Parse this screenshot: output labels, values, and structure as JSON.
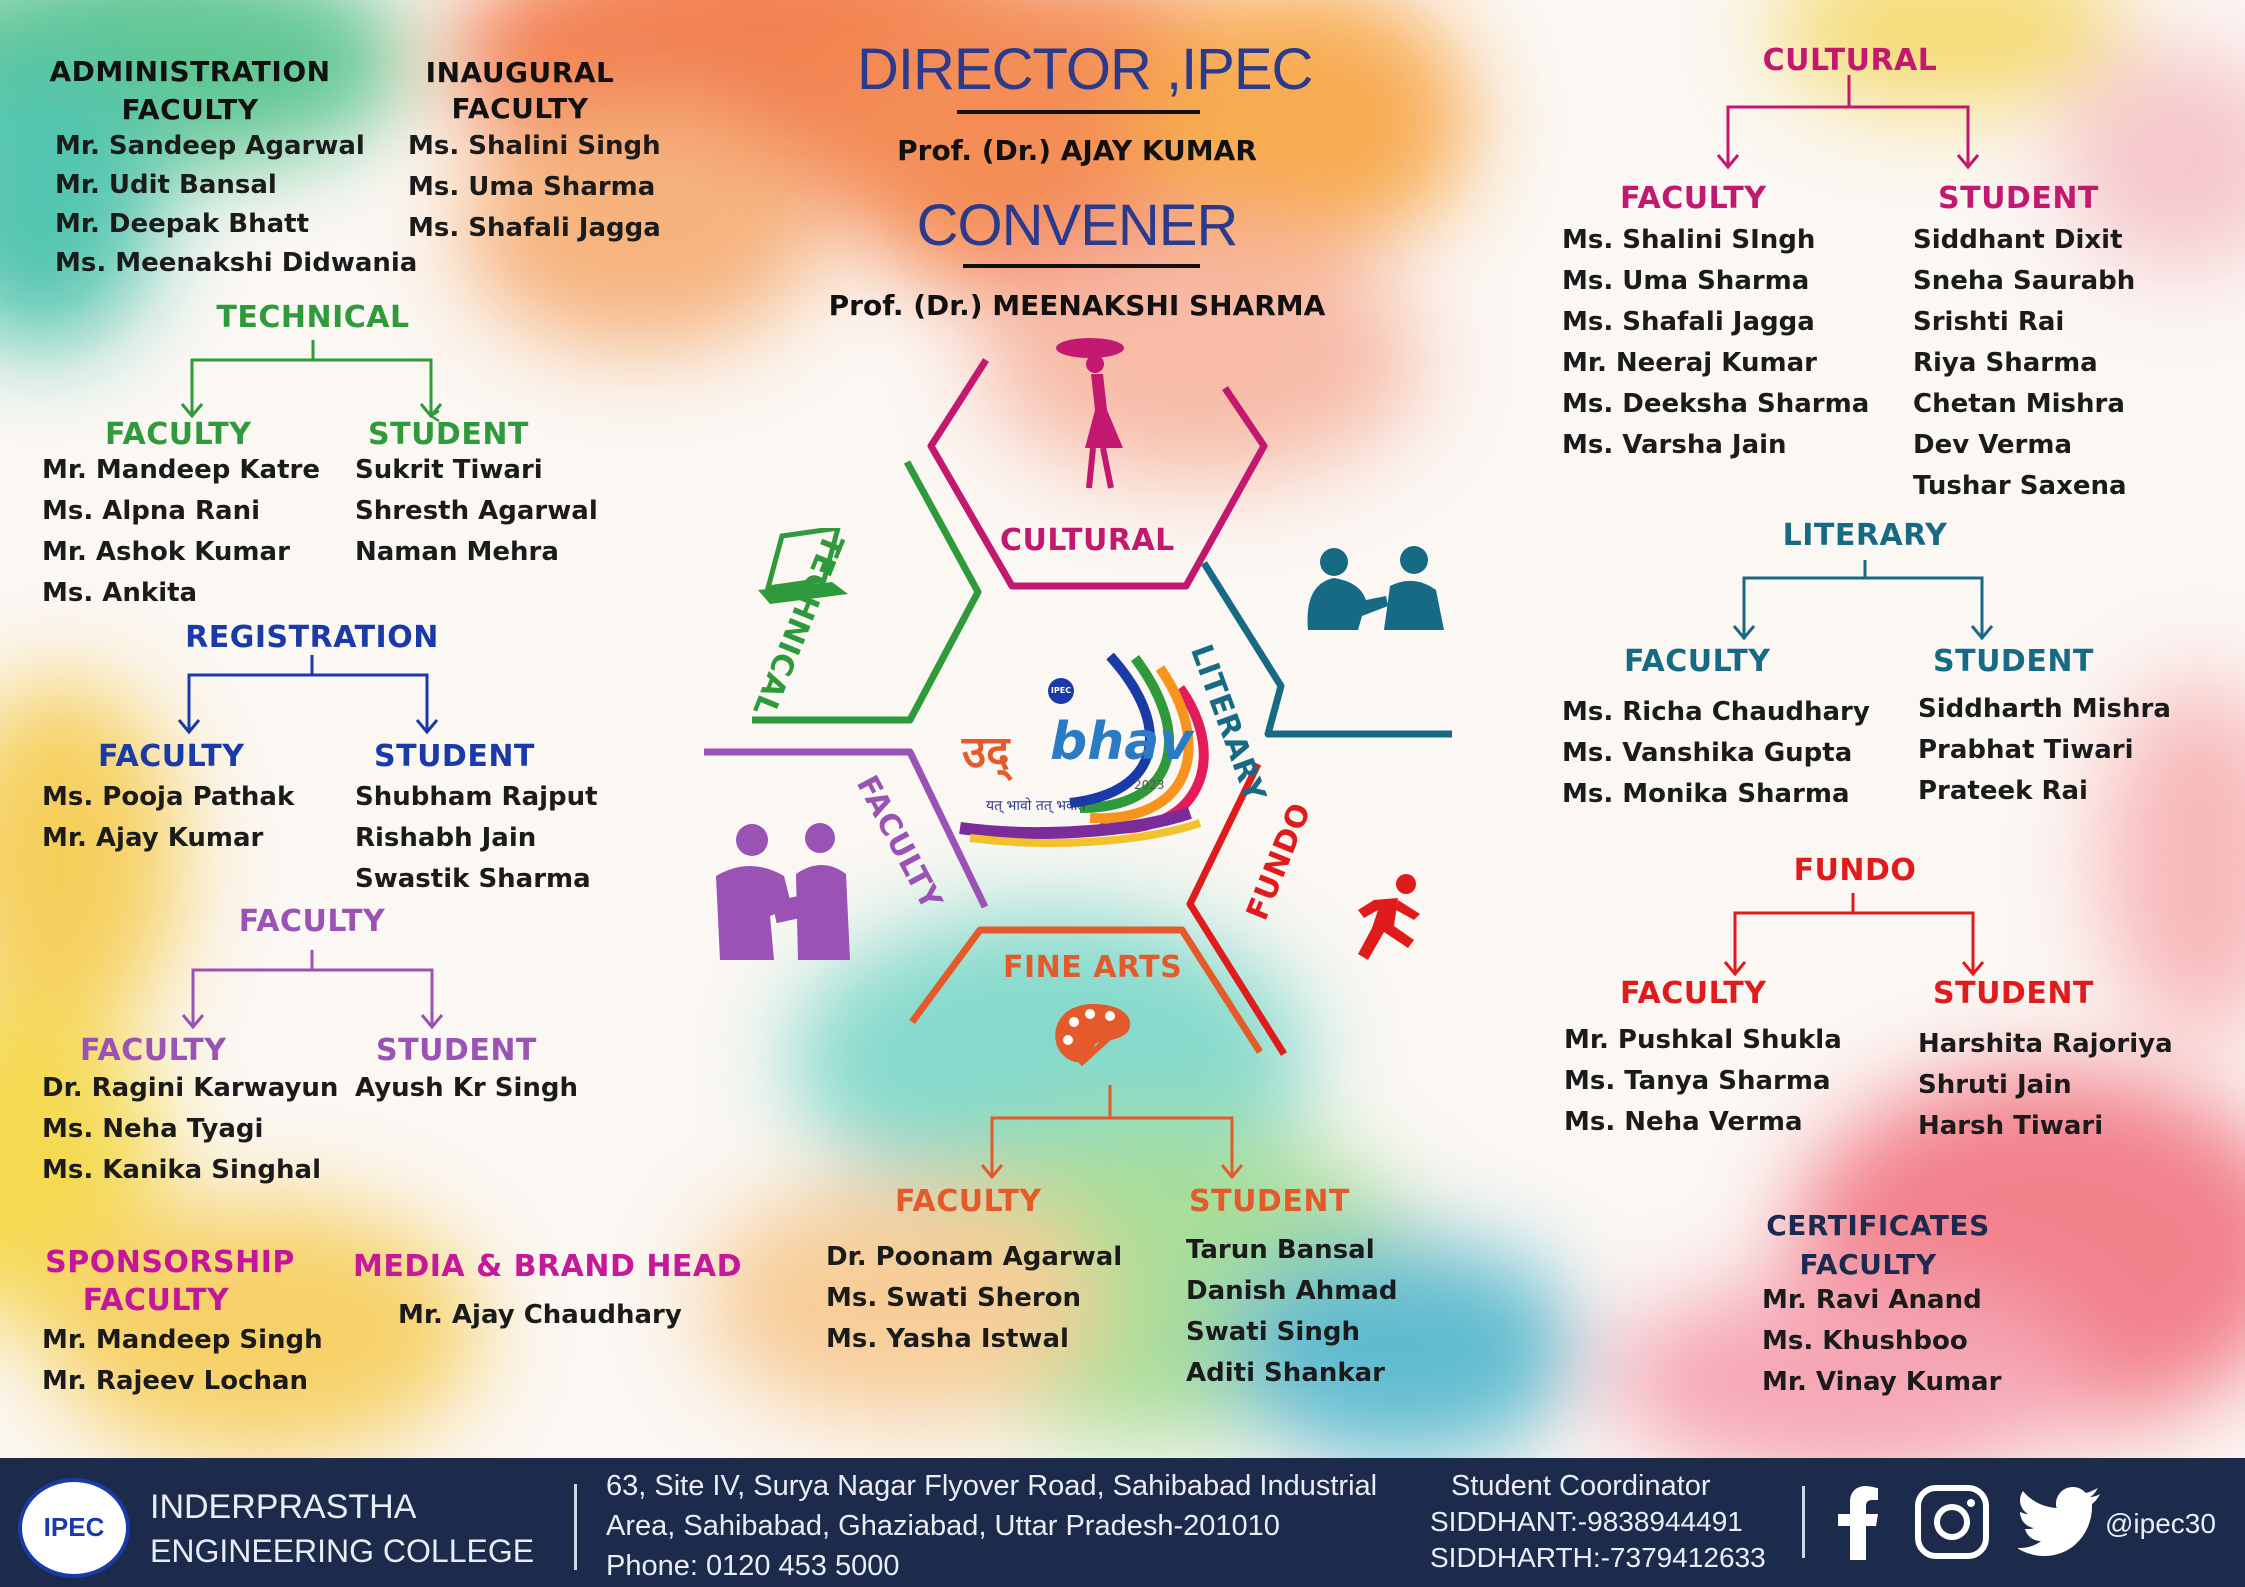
{
  "header": {
    "director_title": "DIRECTOR ,IPEC",
    "director_name": "Prof. (Dr.) AJAY KUMAR",
    "convener_title": "CONVENER",
    "convener_name": "Prof. (Dr.) MEENAKSHI SHARMA"
  },
  "administration": {
    "title": "ADMINISTRATION",
    "subtitle": "FACULTY",
    "names": [
      "Mr. Sandeep Agarwal",
      "Mr. Udit Bansal",
      "Mr. Deepak Bhatt",
      "Ms. Meenakshi Didwania"
    ]
  },
  "inaugural": {
    "title": "INAUGURAL",
    "subtitle": "FACULTY",
    "names": [
      "Ms. Shalini Singh",
      "Ms. Uma Sharma",
      "Ms. Shafali Jagga"
    ]
  },
  "technical": {
    "title": "TECHNICAL",
    "faculty_label": "FACULTY",
    "student_label": "STUDENT",
    "faculty": [
      "Mr. Mandeep Katre",
      "Ms. Alpna Rani",
      "Mr. Ashok Kumar",
      "Ms. Ankita"
    ],
    "students": [
      "Sukrit Tiwari",
      "Shresth Agarwal",
      "Naman Mehra"
    ]
  },
  "registration": {
    "title": "REGISTRATION",
    "faculty_label": "FACULTY",
    "student_label": "STUDENT",
    "faculty": [
      "Ms. Pooja Pathak",
      "Mr. Ajay Kumar"
    ],
    "students": [
      "Shubham Rajput",
      "Rishabh Jain",
      "Swastik Sharma"
    ]
  },
  "faculty_committee": {
    "title": "FACULTY",
    "faculty_label": "FACULTY",
    "student_label": "STUDENT",
    "faculty": [
      "Dr. Ragini Karwayun",
      "Ms. Neha Tyagi",
      "Ms. Kanika Singhal"
    ],
    "students": [
      "Ayush Kr Singh"
    ]
  },
  "sponsorship": {
    "title": "SPONSORSHIP",
    "subtitle": "FACULTY",
    "names": [
      "Mr. Mandeep Singh",
      "Mr. Rajeev Lochan"
    ]
  },
  "media": {
    "title": "MEDIA & BRAND HEAD",
    "names": [
      "Mr. Ajay Chaudhary"
    ]
  },
  "fine_arts": {
    "faculty_label": "FACULTY",
    "student_label": "STUDENT",
    "faculty": [
      "Dr. Poonam Agarwal",
      "Ms. Swati Sheron",
      "Ms. Yasha Istwal"
    ],
    "students": [
      "Tarun Bansal",
      "Danish Ahmad",
      "Swati Singh",
      "Aditi Shankar"
    ]
  },
  "cultural": {
    "title": "CULTURAL",
    "faculty_label": "FACULTY",
    "student_label": "STUDENT",
    "faculty": [
      "Ms. Shalini  SIngh",
      "Ms. Uma Sharma",
      "Ms. Shafali Jagga",
      "Mr. Neeraj Kumar",
      "Ms. Deeksha Sharma",
      "Ms. Varsha Jain"
    ],
    "students": [
      "Siddhant Dixit",
      "Sneha Saurabh",
      "Srishti Rai",
      "Riya Sharma",
      "Chetan Mishra",
      "Dev Verma",
      "Tushar Saxena"
    ]
  },
  "literary": {
    "title": "LITERARY",
    "faculty_label": "FACULTY",
    "student_label": "STUDENT",
    "faculty": [
      "Ms. Richa Chaudhary",
      "Ms. Vanshika Gupta",
      "Ms. Monika Sharma"
    ],
    "students": [
      "Siddharth Mishra",
      "Prabhat Tiwari",
      "Prateek Rai"
    ]
  },
  "fundo": {
    "title": "FUNDO",
    "faculty_label": "FACULTY",
    "student_label": "STUDENT",
    "faculty": [
      "Mr. Pushkal Shukla",
      "Ms. Tanya Sharma",
      "Ms. Neha Verma"
    ],
    "students": [
      "Harshita Rajoriya",
      "Shruti Jain",
      "Harsh Tiwari"
    ]
  },
  "certificates": {
    "title": "CERTIFICATES",
    "subtitle": "FACULTY",
    "names": [
      "Mr. Ravi Anand",
      "Ms. Khushboo",
      "Mr. Vinay Kumar"
    ]
  },
  "hexagon": {
    "cultural": "CULTURAL",
    "literary": "LITERARY",
    "fundo": "FUNDO",
    "fine_arts": "FINE ARTS",
    "faculty": "FACULTY",
    "technical": "TECHNICAL"
  },
  "logo": {
    "badge": "IPEC",
    "word_hindi": "उद्",
    "word_latin": "bhav",
    "year": "2023",
    "tagline": "यत् भावो तत् भवति"
  },
  "footer": {
    "college_badge": "IPEC",
    "college_line1": "INDERPRASTHA",
    "college_line2": "ENGINEERING COLLEGE",
    "address1": "63, Site IV, Surya Nagar Flyover Road, Sahibabad Industrial",
    "address2": "Area, Sahibabad, Ghaziabad, Uttar Pradesh-201010",
    "phone": "Phone: 0120 453 5000",
    "coord_title": "Student Coordinator",
    "coord1": "SIDDHANT:-9838944491",
    "coord2": "SIDDHARTH:-7379412633",
    "handle": "@ipec30"
  },
  "colors": {
    "technical": "#2e9a3c",
    "registration": "#1a3aa8",
    "faculty": "#9b52b5",
    "sponsorship": "#c3169a",
    "media": "#c41a9a",
    "fine_arts": "#e45a2a",
    "cultural": "#c2186f",
    "literary": "#176a84",
    "fundo": "#e01b1b",
    "certificates": "#1d2a4f",
    "director": "#2a3a8c",
    "footer_bg": "#1c2b4b"
  }
}
